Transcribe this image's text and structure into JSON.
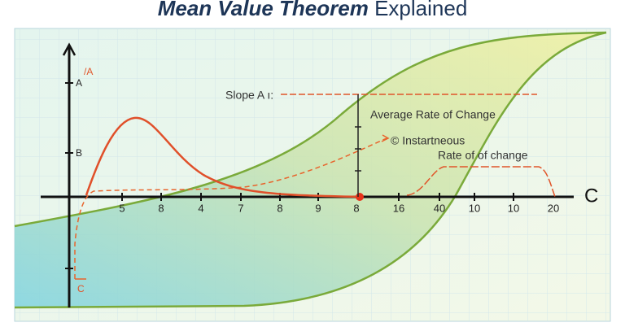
{
  "title": {
    "bold": "Mean Value Theorem",
    "regular": "Explained"
  },
  "y_axis": {
    "top_label": "/A",
    "labels": [
      "A",
      "B",
      "C"
    ]
  },
  "x_axis": {
    "label": "C",
    "tick_labels": [
      "5",
      "8",
      "4",
      "7",
      "8",
      "9",
      "8",
      "16",
      "40",
      "10",
      "10",
      "20"
    ]
  },
  "annotations": {
    "slope": "Slope A ı:",
    "average": "Average Rate of Change",
    "instantaneous": "© Instartneous",
    "rate": "Rate of of change"
  }
}
